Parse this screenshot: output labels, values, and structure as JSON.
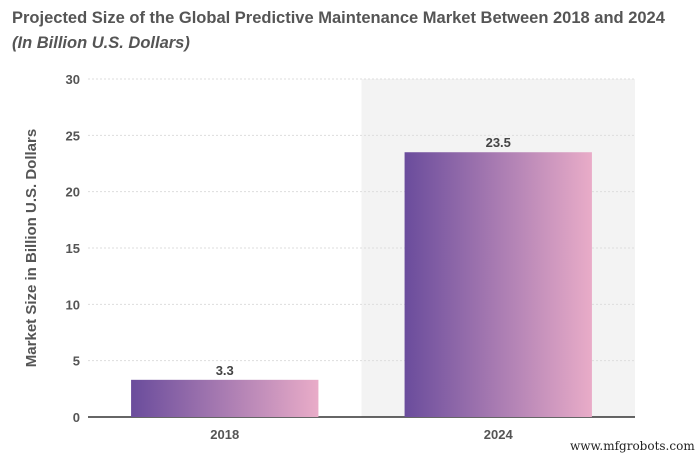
{
  "chart_data": {
    "type": "bar",
    "title": "Projected Size of the Global Predictive Maintenance Market Between 2018 and 2024",
    "subtitle": "(In Billion U.S. Dollars)",
    "xlabel": "",
    "ylabel": "Market Size in Billion U.S. Dollars",
    "categories": [
      "2018",
      "2024"
    ],
    "values": [
      3.3,
      23.5
    ],
    "data_labels": [
      "3.3",
      "23.5"
    ],
    "ylim": [
      0,
      30
    ],
    "yticks": [
      0,
      5,
      10,
      15,
      20,
      25,
      30
    ],
    "grid": true,
    "highlighted_category": "2024",
    "colors": {
      "bar_start": "#6a4c9c",
      "bar_end": "#e9acc8",
      "highlight_band": "#f3f3f3",
      "text": "#555555"
    }
  },
  "watermark": "www.mfgrobots.com"
}
